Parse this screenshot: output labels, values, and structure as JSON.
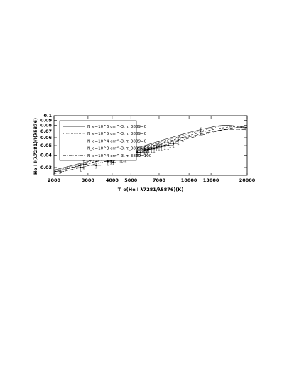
{
  "chart_data": {
    "type": "line",
    "xlabel": "T_e(He I λ7281/λ5876)(K)",
    "ylabel": "He I I(λ7281)/I(λ5876)",
    "x_scale": "log",
    "y_scale": "log",
    "xlim": [
      2000,
      20000
    ],
    "ylim": [
      0.025,
      0.1
    ],
    "x_ticks": [
      2000,
      3000,
      4000,
      5000,
      7000,
      10000,
      13000,
      20000
    ],
    "x_tick_labels": [
      "2000",
      "3000",
      "4000",
      "5000",
      "7000",
      "10000",
      "13000",
      "20000"
    ],
    "y_ticks": [
      0.03,
      0.04,
      0.05,
      0.06,
      0.07,
      0.08,
      0.09,
      0.1
    ],
    "y_tick_labels": [
      "0.03",
      "0.04",
      "0.05",
      "0.06",
      "0.07",
      "0.08",
      "0.09",
      "0.1"
    ],
    "legend_position": "top-left",
    "series": [
      {
        "name": "N_e=10^6 cm^-3, τ_3889=0",
        "dash": "solid",
        "x": [
          2000,
          3000,
          4000,
          5000,
          6000,
          7000,
          8000,
          10000,
          12000,
          14000,
          15000,
          16000,
          18000,
          20000
        ],
        "y": [
          0.0283,
          0.0345,
          0.0402,
          0.0455,
          0.0505,
          0.0553,
          0.0598,
          0.0677,
          0.074,
          0.0788,
          0.08,
          0.08,
          0.0785,
          0.076
        ]
      },
      {
        "name": "N_e=10^5 cm^-3, τ_3889=0",
        "dash": "dotted",
        "x": [
          2000,
          3000,
          4000,
          5000,
          6000,
          7000,
          8000,
          10000,
          12000,
          14000,
          15000,
          16000,
          18000,
          20000
        ],
        "y": [
          0.0278,
          0.0338,
          0.0393,
          0.0445,
          0.0493,
          0.0538,
          0.058,
          0.0658,
          0.072,
          0.0772,
          0.079,
          0.0795,
          0.0782,
          0.076
        ]
      },
      {
        "name": "N_e=10^4 cm^-3, τ_3889=0",
        "dash": "dashed",
        "x": [
          2000,
          3000,
          4000,
          5000,
          6000,
          7000,
          8000,
          10000,
          12000,
          14000,
          16000,
          17000,
          18000,
          20000
        ],
        "y": [
          0.0272,
          0.033,
          0.0383,
          0.0432,
          0.0478,
          0.052,
          0.056,
          0.0632,
          0.0693,
          0.074,
          0.0768,
          0.0772,
          0.077,
          0.075
        ]
      },
      {
        "name": "N_e=10^3 cm^-3, τ_3889=0",
        "dash": "longdash",
        "x": [
          2000,
          3000,
          4000,
          5000,
          6000,
          7000,
          8000,
          10000,
          12000,
          14000,
          15000,
          16000,
          18000,
          20000
        ],
        "y": [
          0.027,
          0.0327,
          0.0378,
          0.0425,
          0.0468,
          0.0508,
          0.0545,
          0.0612,
          0.0667,
          0.0708,
          0.072,
          0.0728,
          0.073,
          0.072
        ]
      },
      {
        "name": "N_e=10^4 cm^-3, τ_3889=100",
        "dash": "dashdot",
        "x": [
          2000,
          3000,
          4000,
          5000,
          6000,
          7000,
          8000,
          10000,
          12000,
          14000,
          16000,
          17000,
          18000,
          20000
        ],
        "y": [
          0.026,
          0.0312,
          0.036,
          0.0405,
          0.0447,
          0.0487,
          0.0524,
          0.0592,
          0.0648,
          0.0698,
          0.0742,
          0.0756,
          0.0762,
          0.0755
        ]
      }
    ],
    "observations": {
      "x": [
        2150,
        2750,
        2850,
        3300,
        3800,
        3950,
        4050,
        4200,
        4400,
        4500,
        4600,
        4700,
        4800,
        4900,
        5100,
        5200,
        5300,
        5400,
        5600,
        5800,
        5900,
        6000,
        6100,
        6200,
        6400,
        6600,
        6800,
        7000,
        7200,
        7500,
        7800,
        8000,
        8300,
        8800,
        9300,
        11500
      ],
      "y": [
        0.0275,
        0.03,
        0.032,
        0.0315,
        0.0345,
        0.035,
        0.034,
        0.0365,
        0.036,
        0.037,
        0.0378,
        0.0372,
        0.039,
        0.04,
        0.041,
        0.042,
        0.0405,
        0.043,
        0.0425,
        0.044,
        0.045,
        0.043,
        0.0455,
        0.046,
        0.047,
        0.0465,
        0.048,
        0.0495,
        0.049,
        0.05,
        0.0505,
        0.053,
        0.052,
        0.056,
        0.06,
        0.07
      ],
      "yerr": [
        0.0015,
        0.0025,
        0.003,
        0.002,
        0.003,
        0.0025,
        0.002,
        0.003,
        0.0025,
        0.003,
        0.0035,
        0.003,
        0.003,
        0.0035,
        0.004,
        0.0045,
        0.003,
        0.004,
        0.0035,
        0.004,
        0.004,
        0.003,
        0.0045,
        0.004,
        0.0045,
        0.004,
        0.004,
        0.005,
        0.004,
        0.0045,
        0.005,
        0.005,
        0.004,
        0.005,
        0.005,
        0.0055
      ],
      "xerr": [
        100,
        150,
        150,
        200,
        150,
        200,
        150,
        200,
        200,
        200,
        250,
        200,
        250,
        300,
        300,
        300,
        250,
        350,
        300,
        350,
        300,
        250,
        350,
        350,
        400,
        350,
        400,
        450,
        400,
        500,
        500,
        600,
        500,
        600,
        700,
        1000
      ]
    }
  }
}
